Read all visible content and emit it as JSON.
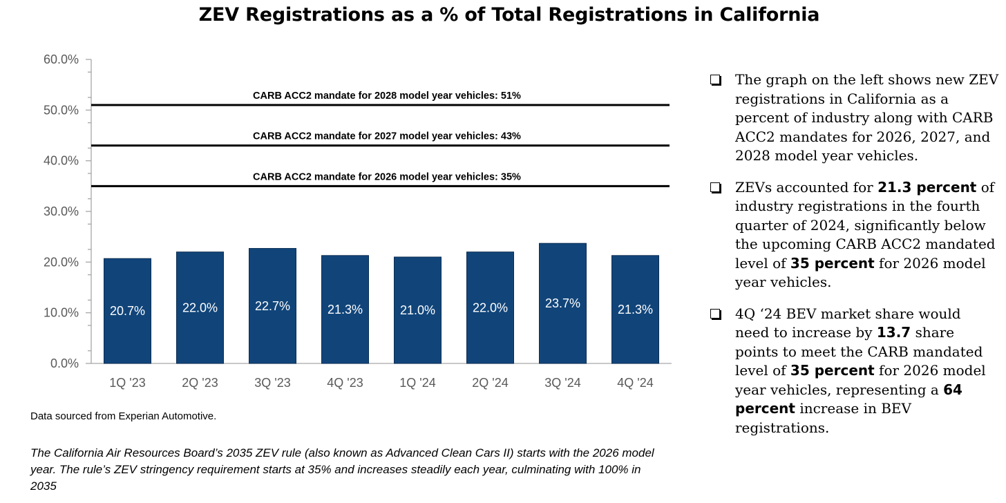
{
  "chart_data": {
    "type": "bar",
    "title": "ZEV Registrations as a % of Total Registrations in California",
    "categories": [
      "1Q '23",
      "2Q '23",
      "3Q '23",
      "4Q '23",
      "1Q '24",
      "2Q '24",
      "3Q '24",
      "4Q '24"
    ],
    "values": [
      20.7,
      22.0,
      22.7,
      21.3,
      21.0,
      22.0,
      23.7,
      21.3
    ],
    "data_labels": [
      "20.7%",
      "22.0%",
      "22.7%",
      "21.3%",
      "21.0%",
      "22.0%",
      "23.7%",
      "21.3%"
    ],
    "ylim": [
      0,
      60
    ],
    "yticks": [
      0,
      10,
      20,
      30,
      40,
      50,
      60
    ],
    "ytick_labels": [
      "0.0%",
      "10.0%",
      "20.0%",
      "30.0%",
      "40.0%",
      "50.0%",
      "60.0%"
    ],
    "xlabel": "",
    "ylabel": "",
    "grid": false,
    "bar_color": "#11457a",
    "reference_lines": [
      {
        "value": 51,
        "label": "CARB ACC2 mandate for 2028 model year vehicles: 51%"
      },
      {
        "value": 43,
        "label": "CARB ACC2 mandate for 2027 model year vehicles: 43%"
      },
      {
        "value": 35,
        "label": "CARB ACC2 mandate for 2026 model year vehicles: 35%"
      }
    ]
  },
  "source_note": "Data sourced from Experian Automotive.",
  "footnote": "The California Air Resources Board’s 2035 ZEV rule (also known as Advanced Clean Cars II) starts with the 2026 model year. The rule’s ZEV stringency requirement starts at 35% and increases steadily each year, culminating with 100% in 2035",
  "bullets": [
    [
      {
        "text": "The graph on the left shows new ZEV registrations in California as a percent of industry along with CARB ACC2 mandates for 2026, 2027, and 2028 model year vehicles.",
        "bold": false
      }
    ],
    [
      {
        "text": "ZEVs accounted for ",
        "bold": false
      },
      {
        "text": "21.3 percent",
        "bold": true
      },
      {
        "text": " of industry registrations in the fourth quarter of 2024, significantly below the upcoming CARB ACC2 mandated level of ",
        "bold": false
      },
      {
        "text": "35 percent",
        "bold": true
      },
      {
        "text": " for 2026 model year vehicles.",
        "bold": false
      }
    ],
    [
      {
        "text": "4Q ‘24 BEV market share would need to increase by ",
        "bold": false
      },
      {
        "text": "13.7",
        "bold": true
      },
      {
        "text": " share points to meet the CARB mandated level of ",
        "bold": false
      },
      {
        "text": "35 percent",
        "bold": true
      },
      {
        "text": " for 2026 model year vehicles, representing a ",
        "bold": false
      },
      {
        "text": "64 percent",
        "bold": true
      },
      {
        "text": " increase in BEV registrations.",
        "bold": false
      }
    ]
  ]
}
